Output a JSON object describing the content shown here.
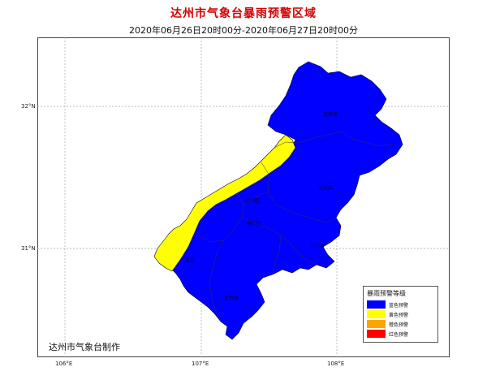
{
  "title": "达州市气象台暴雨预警区域",
  "subtitle": "2020年06月26日20时00分-2020年06月27日20时00分",
  "grid": {
    "lat_labels": [
      "32°N",
      "31°N"
    ],
    "lon_labels": [
      "106°E",
      "107°E",
      "108°E"
    ]
  },
  "credit": "达州市气象台制作",
  "legend": {
    "title": "暴雨预警等级",
    "items": [
      {
        "label": "蓝色预警",
        "color": "#0000ff"
      },
      {
        "label": "黄色预警",
        "color": "#ffff00"
      },
      {
        "label": "橙色预警",
        "color": "#ffa500"
      },
      {
        "label": "红色预警",
        "color": "#ff0000"
      }
    ]
  },
  "regions": {
    "blue": {
      "color": "#0000ff"
    },
    "yellow": {
      "color": "#ffff00"
    }
  },
  "county_labels": [
    "万源市",
    "宣汉县",
    "开江县",
    "达川区",
    "通川区",
    "渠县",
    "大竹县"
  ]
}
